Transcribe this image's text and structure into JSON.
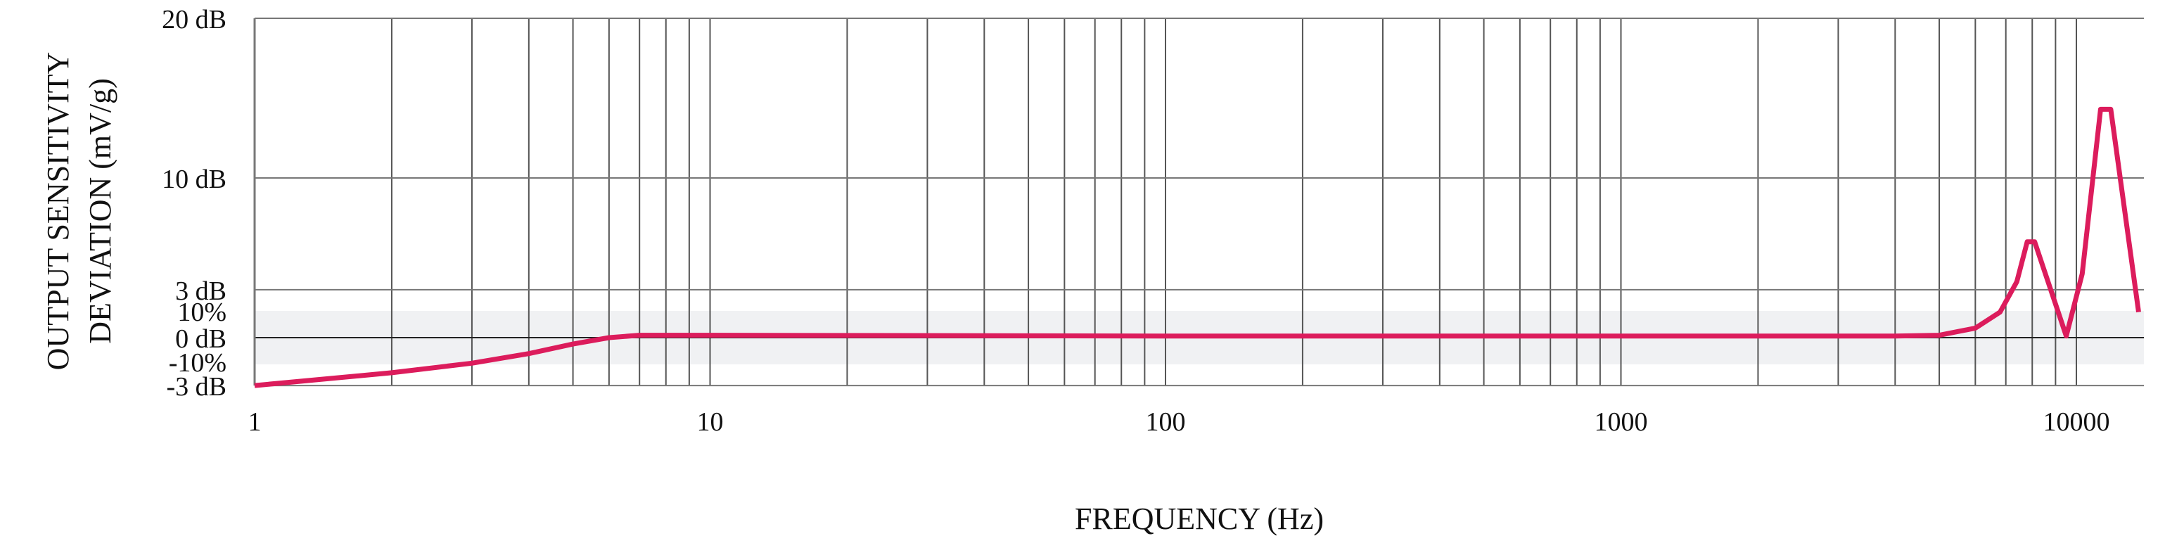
{
  "chart_data": {
    "type": "line",
    "title": "",
    "xlabel": "FREQUENCY (Hz)",
    "ylabel_lines": [
      "OUTPUT SENSITIVITY",
      "DEVIATION (mV/g)"
    ],
    "x_scale": "log",
    "xlim": [
      1,
      15000
    ],
    "ylim": [
      -3,
      20
    ],
    "x_ticks": [
      1,
      10,
      100,
      1000,
      10000
    ],
    "x_tick_labels": [
      "1",
      "10",
      "100",
      "1000",
      "10000"
    ],
    "y_ticks": [
      {
        "value": 20,
        "label": "20 dB"
      },
      {
        "value": 10,
        "label": "10 dB"
      },
      {
        "value": 3,
        "label": "3 dB"
      },
      {
        "value": 0,
        "label": "0 dB"
      },
      {
        "value": -3,
        "label": "-3 dB"
      }
    ],
    "tolerance_band": {
      "upper_label": "10%",
      "lower_label": "-10%",
      "color": "#f0f1f3"
    },
    "grid": true,
    "series": [
      {
        "color": "#dc1c5c",
        "x": [
          1,
          2,
          3,
          4,
          5,
          6,
          7,
          10,
          100,
          1000,
          4000,
          5000,
          6000,
          6800,
          7400,
          7800,
          8100,
          9500,
          10300,
          11300,
          11900,
          13700
        ],
        "y": [
          -3,
          -2.2,
          -1.6,
          -1.0,
          -0.4,
          0,
          0.15,
          0.15,
          0.1,
          0.1,
          0.1,
          0.15,
          0.6,
          1.6,
          3.5,
          6.0,
          6.0,
          0.1,
          4.0,
          14.3,
          14.3,
          1.6
        ]
      }
    ]
  }
}
